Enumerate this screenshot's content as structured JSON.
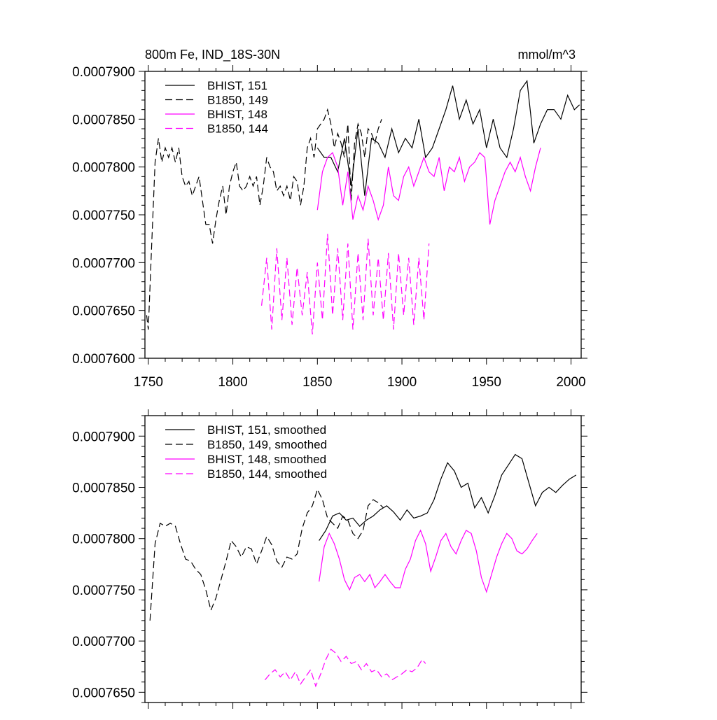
{
  "chart_data": [
    {
      "type": "line",
      "title": "800m Fe, IND_18S-30N",
      "units": "mmol/m^3",
      "xlim": [
        1748,
        2006
      ],
      "ylim": [
        0.00076,
        0.00079
      ],
      "xticks": [
        1750,
        1800,
        1850,
        1900,
        1950,
        2000
      ],
      "xtick_labels": [
        "1750",
        "1800",
        "1850",
        "1900",
        "1950",
        "2000"
      ],
      "yticks": [
        0.00076,
        0.000765,
        0.00077,
        0.000775,
        0.00078,
        0.000785,
        0.00079
      ],
      "ytick_labels": [
        "0.0007600",
        "0.0007650",
        "0.0007700",
        "0.0007750",
        "0.0007800",
        "0.0007850",
        "0.0007900"
      ],
      "grid": false,
      "legend_position": "top-left",
      "series": [
        {
          "name": "BHIST, 151",
          "color": "#000000",
          "dash": "solid",
          "x": [
            1850,
            1854,
            1858,
            1862,
            1866,
            1870,
            1874,
            1878,
            1882,
            1886,
            1890,
            1894,
            1898,
            1902,
            1906,
            1910,
            1914,
            1918,
            1922,
            1926,
            1930,
            1934,
            1938,
            1942,
            1946,
            1950,
            1954,
            1958,
            1962,
            1966,
            1970,
            1974,
            1978,
            1982,
            1986,
            1990,
            1994,
            1998,
            2002,
            2005
          ],
          "y": [
            0.000782,
            0.000781,
            0.000781,
            0.0007795,
            0.000783,
            0.000778,
            0.000784,
            0.000777,
            0.000783,
            0.0007825,
            0.000781,
            0.000784,
            0.0007815,
            0.000783,
            0.000782,
            0.000785,
            0.000781,
            0.000782,
            0.000784,
            0.000786,
            0.0007885,
            0.000785,
            0.000787,
            0.0007845,
            0.000786,
            0.000782,
            0.000785,
            0.000782,
            0.000781,
            0.000784,
            0.000788,
            0.000789,
            0.0007825,
            0.0007845,
            0.000786,
            0.000786,
            0.000785,
            0.0007875,
            0.000786,
            0.0007865
          ]
        },
        {
          "name": "B1850, 149",
          "color": "#000000",
          "dash": "dashed",
          "x": [
            1749,
            1750,
            1752,
            1754,
            1756,
            1758,
            1760,
            1762,
            1764,
            1766,
            1768,
            1770,
            1772,
            1774,
            1776,
            1778,
            1780,
            1782,
            1784,
            1786,
            1788,
            1790,
            1792,
            1794,
            1796,
            1798,
            1800,
            1802,
            1804,
            1806,
            1808,
            1810,
            1812,
            1814,
            1816,
            1818,
            1820,
            1822,
            1824,
            1826,
            1828,
            1830,
            1832,
            1834,
            1836,
            1838,
            1840,
            1842,
            1844,
            1846,
            1848,
            1850,
            1852,
            1854,
            1856,
            1858,
            1860,
            1862,
            1864,
            1866,
            1868,
            1870,
            1872,
            1874,
            1876,
            1878,
            1880,
            1882,
            1884,
            1886,
            1888
          ],
          "y": [
            0.0007645,
            0.000763,
            0.000772,
            0.0007805,
            0.000783,
            0.0007805,
            0.000782,
            0.000781,
            0.000782,
            0.0007805,
            0.000782,
            0.000779,
            0.000778,
            0.0007785,
            0.000777,
            0.000778,
            0.000779,
            0.0007765,
            0.000774,
            0.000774,
            0.000772,
            0.0007745,
            0.0007765,
            0.000778,
            0.000775,
            0.000778,
            0.0007795,
            0.0007805,
            0.000778,
            0.0007775,
            0.000778,
            0.000779,
            0.000778,
            0.000779,
            0.000776,
            0.000778,
            0.000781,
            0.00078,
            0.0007795,
            0.0007775,
            0.000778,
            0.000777,
            0.000778,
            0.0007765,
            0.000779,
            0.0007785,
            0.000776,
            0.000778,
            0.000782,
            0.000783,
            0.000781,
            0.000784,
            0.0007845,
            0.000785,
            0.000786,
            0.0007845,
            0.000782,
            0.0007835,
            0.0007825,
            0.000781,
            0.0007845,
            0.0007765,
            0.0007825,
            0.0007845,
            0.0007835,
            0.000781,
            0.000784,
            0.0007835,
            0.0007825,
            0.000784,
            0.000785
          ]
        },
        {
          "name": "BHIST, 148",
          "color": "#ff00ff",
          "dash": "solid",
          "x": [
            1850,
            1853,
            1856,
            1859,
            1862,
            1865,
            1868,
            1871,
            1874,
            1877,
            1880,
            1883,
            1886,
            1889,
            1892,
            1895,
            1898,
            1901,
            1904,
            1907,
            1910,
            1913,
            1916,
            1919,
            1922,
            1925,
            1928,
            1931,
            1934,
            1937,
            1940,
            1943,
            1946,
            1949,
            1952,
            1955,
            1958,
            1961,
            1964,
            1967,
            1970,
            1973,
            1976,
            1979,
            1982
          ],
          "y": [
            0.0007755,
            0.0007795,
            0.000781,
            0.0007815,
            0.00078,
            0.000776,
            0.0007795,
            0.0007745,
            0.000777,
            0.0007755,
            0.000778,
            0.0007765,
            0.0007745,
            0.000776,
            0.00078,
            0.000777,
            0.0007765,
            0.000779,
            0.00078,
            0.000778,
            0.0007795,
            0.000781,
            0.0007795,
            0.000779,
            0.000781,
            0.0007775,
            0.00078,
            0.0007795,
            0.000781,
            0.0007785,
            0.00078,
            0.0007805,
            0.0007815,
            0.000781,
            0.000774,
            0.0007765,
            0.000778,
            0.0007795,
            0.0007805,
            0.0007795,
            0.000781,
            0.000779,
            0.0007775,
            0.00078,
            0.000782
          ]
        },
        {
          "name": "B1850, 144",
          "color": "#ff00ff",
          "dash": "dashed",
          "x": [
            1817,
            1820,
            1823,
            1826,
            1829,
            1832,
            1835,
            1838,
            1841,
            1844,
            1847,
            1850,
            1853,
            1856,
            1859,
            1862,
            1865,
            1868,
            1871,
            1874,
            1877,
            1880,
            1883,
            1886,
            1889,
            1892,
            1895,
            1898,
            1901,
            1904,
            1907,
            1910,
            1913,
            1916
          ],
          "y": [
            0.0007655,
            0.0007705,
            0.000763,
            0.0007715,
            0.000764,
            0.0007705,
            0.0007635,
            0.0007695,
            0.0007645,
            0.000769,
            0.0007625,
            0.00077,
            0.000764,
            0.000773,
            0.0007645,
            0.0007715,
            0.000764,
            0.000772,
            0.000763,
            0.000771,
            0.000764,
            0.0007725,
            0.0007645,
            0.0007705,
            0.000764,
            0.000771,
            0.000763,
            0.000771,
            0.0007645,
            0.0007705,
            0.0007635,
            0.0007705,
            0.000764,
            0.000772
          ]
        }
      ]
    },
    {
      "type": "line",
      "xlim": [
        1748,
        2006
      ],
      "ylim": [
        0.000764,
        0.000792
      ],
      "xticks": [
        1750,
        1800,
        1850,
        1900,
        1950,
        2000
      ],
      "xtick_labels": [],
      "yticks": [
        0.000765,
        0.00077,
        0.000775,
        0.00078,
        0.000785,
        0.00079
      ],
      "ytick_labels": [
        "0.0007650",
        "0.0007700",
        "0.0007750",
        "0.0007800",
        "0.0007850",
        "0.0007900"
      ],
      "grid": false,
      "legend_position": "top-left",
      "series": [
        {
          "name": "BHIST, 151, smoothed",
          "color": "#000000",
          "dash": "solid",
          "x": [
            1851,
            1855,
            1859,
            1863,
            1867,
            1871,
            1875,
            1879,
            1883,
            1887,
            1891,
            1895,
            1899,
            1903,
            1907,
            1911,
            1915,
            1919,
            1923,
            1927,
            1931,
            1935,
            1939,
            1943,
            1947,
            1951,
            1955,
            1959,
            1963,
            1967,
            1971,
            1975,
            1979,
            1983,
            1987,
            1991,
            1995,
            1999,
            2003
          ],
          "y": [
            0.0007798,
            0.0007808,
            0.0007822,
            0.0007825,
            0.0007818,
            0.000782,
            0.0007812,
            0.0007818,
            0.0007822,
            0.0007828,
            0.0007832,
            0.0007826,
            0.0007818,
            0.0007828,
            0.000782,
            0.0007822,
            0.0007825,
            0.0007838,
            0.0007858,
            0.0007874,
            0.0007866,
            0.000785,
            0.0007854,
            0.000783,
            0.000784,
            0.0007825,
            0.0007842,
            0.0007862,
            0.0007872,
            0.0007882,
            0.0007878,
            0.0007855,
            0.0007832,
            0.0007845,
            0.000785,
            0.0007845,
            0.0007852,
            0.0007858,
            0.0007862
          ]
        },
        {
          "name": "B1850, 149, smoothed",
          "color": "#000000",
          "dash": "dashed",
          "x": [
            1751,
            1754,
            1757,
            1760,
            1763,
            1766,
            1769,
            1772,
            1775,
            1778,
            1781,
            1784,
            1787,
            1790,
            1793,
            1796,
            1799,
            1802,
            1805,
            1808,
            1811,
            1814,
            1817,
            1820,
            1823,
            1826,
            1829,
            1832,
            1835,
            1838,
            1841,
            1844,
            1847,
            1850,
            1853,
            1856,
            1859,
            1862,
            1865,
            1868,
            1871,
            1874,
            1877,
            1880,
            1883,
            1886,
            1889
          ],
          "y": [
            0.000772,
            0.0007795,
            0.0007815,
            0.0007812,
            0.0007815,
            0.0007812,
            0.0007795,
            0.000778,
            0.0007778,
            0.000777,
            0.0007765,
            0.000775,
            0.000773,
            0.0007742,
            0.000776,
            0.0007778,
            0.0007798,
            0.0007792,
            0.0007782,
            0.0007792,
            0.000779,
            0.0007775,
            0.0007788,
            0.0007802,
            0.0007794,
            0.0007778,
            0.0007772,
            0.0007782,
            0.000778,
            0.0007785,
            0.000781,
            0.0007825,
            0.0007832,
            0.0007848,
            0.0007838,
            0.000782,
            0.0007815,
            0.000781,
            0.0007822,
            0.0007818,
            0.0007805,
            0.00078,
            0.0007808,
            0.0007832,
            0.0007838,
            0.0007835,
            0.000783
          ]
        },
        {
          "name": "BHIST, 148, smoothed",
          "color": "#ff00ff",
          "dash": "solid",
          "x": [
            1851,
            1854,
            1857,
            1860,
            1863,
            1866,
            1869,
            1872,
            1875,
            1878,
            1881,
            1884,
            1887,
            1890,
            1893,
            1896,
            1899,
            1902,
            1905,
            1908,
            1911,
            1914,
            1917,
            1920,
            1923,
            1926,
            1929,
            1932,
            1935,
            1938,
            1941,
            1944,
            1947,
            1950,
            1953,
            1956,
            1959,
            1962,
            1965,
            1968,
            1971,
            1974,
            1977,
            1980
          ],
          "y": [
            0.0007758,
            0.0007792,
            0.0007805,
            0.0007795,
            0.000778,
            0.000776,
            0.000775,
            0.0007762,
            0.0007765,
            0.0007758,
            0.0007765,
            0.0007752,
            0.0007758,
            0.0007765,
            0.0007758,
            0.0007752,
            0.0007752,
            0.000777,
            0.000778,
            0.0007798,
            0.0007808,
            0.0007795,
            0.0007768,
            0.0007782,
            0.0007798,
            0.0007805,
            0.0007792,
            0.0007785,
            0.0007798,
            0.0007808,
            0.0007805,
            0.0007788,
            0.0007762,
            0.0007748,
            0.0007765,
            0.0007782,
            0.0007795,
            0.0007805,
            0.00078,
            0.0007788,
            0.0007785,
            0.000779,
            0.0007798,
            0.0007805
          ]
        },
        {
          "name": "B1850, 144, smoothed",
          "color": "#ff00ff",
          "dash": "dashed",
          "x": [
            1819,
            1822,
            1825,
            1828,
            1831,
            1834,
            1837,
            1840,
            1843,
            1846,
            1849,
            1852,
            1855,
            1858,
            1861,
            1864,
            1867,
            1870,
            1873,
            1876,
            1879,
            1882,
            1885,
            1888,
            1891,
            1894,
            1897,
            1900,
            1903,
            1906,
            1909,
            1912,
            1914
          ],
          "y": [
            0.0007662,
            0.0007668,
            0.0007672,
            0.0007665,
            0.000767,
            0.0007662,
            0.000767,
            0.0007658,
            0.0007665,
            0.0007672,
            0.0007656,
            0.0007668,
            0.0007682,
            0.0007692,
            0.0007688,
            0.000768,
            0.0007685,
            0.0007678,
            0.000768,
            0.0007672,
            0.0007678,
            0.000767,
            0.0007672,
            0.0007665,
            0.0007668,
            0.0007662,
            0.0007665,
            0.0007668,
            0.0007672,
            0.000767,
            0.0007674,
            0.0007682,
            0.0007678
          ]
        }
      ]
    }
  ]
}
